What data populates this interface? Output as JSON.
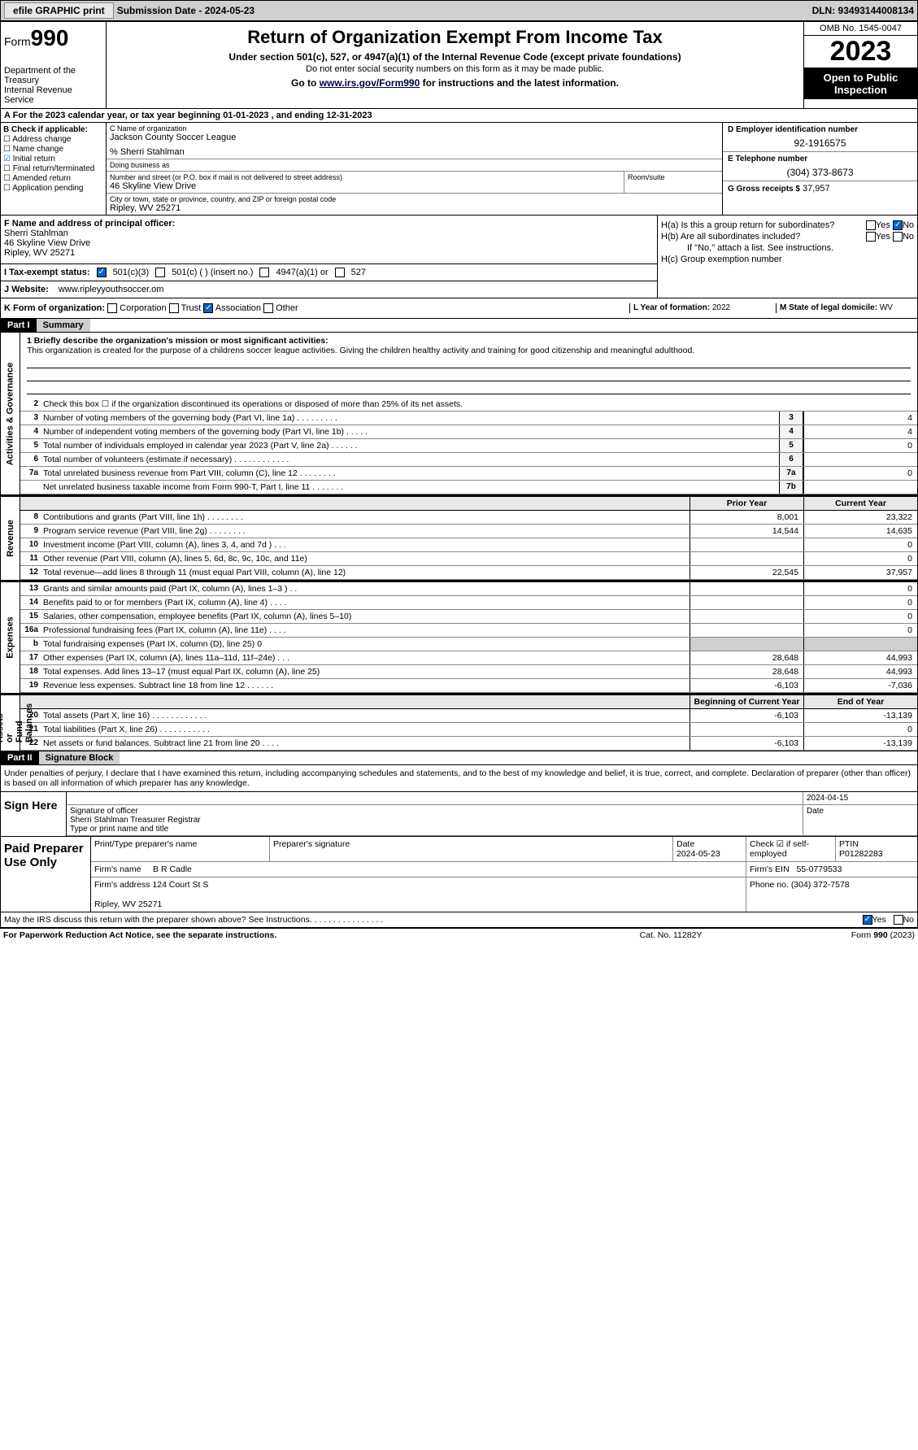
{
  "topbar": {
    "efile": "efile GRAPHIC print",
    "submission": "Submission Date - 2024-05-23",
    "dln": "DLN: 93493144008134"
  },
  "header": {
    "form_prefix": "Form",
    "form_no": "990",
    "dept": "Department of the Treasury\nInternal Revenue Service",
    "title": "Return of Organization Exempt From Income Tax",
    "sub1": "Under section 501(c), 527, or 4947(a)(1) of the Internal Revenue Code (except private foundations)",
    "sub2": "Do not enter social security numbers on this form as it may be made public.",
    "sub3_pre": "Go to ",
    "sub3_link": "www.irs.gov/Form990",
    "sub3_post": " for instructions and the latest information.",
    "omb": "OMB No. 1545-0047",
    "year": "2023",
    "otpi": "Open to Public Inspection"
  },
  "row_a": "A  For the 2023 calendar year, or tax year beginning 01-01-2023    , and ending 12-31-2023",
  "box_b": {
    "hdr": "B Check if applicable:",
    "items": [
      {
        "label": "Address change",
        "on": false
      },
      {
        "label": "Name change",
        "on": false
      },
      {
        "label": "Initial return",
        "on": true
      },
      {
        "label": "Final return/terminated",
        "on": false
      },
      {
        "label": "Amended return",
        "on": false
      },
      {
        "label": "Application pending",
        "on": false
      }
    ]
  },
  "box_c": {
    "name_lbl": "C Name of organization",
    "name": "Jackson County Soccer League",
    "care_of": "% Sherri Stahlman",
    "dba_lbl": "Doing business as",
    "dba": "",
    "addr_lbl": "Number and street (or P.O. box if mail is not delivered to street address)",
    "addr": "46 Skyline View Drive",
    "room_lbl": "Room/suite",
    "city_lbl": "City or town, state or province, country, and ZIP or foreign postal code",
    "city": "Ripley, WV  25271"
  },
  "box_d": {
    "ein_lbl": "D Employer identification number",
    "ein": "92-1916575",
    "tel_lbl": "E Telephone number",
    "tel": "(304) 373-8673",
    "gross_lbl": "G Gross receipts $",
    "gross": "37,957"
  },
  "box_f": {
    "lbl": "F  Name and address of principal officer:",
    "name": "Sherri Stahlman",
    "addr1": "46 Skyline View Drive",
    "addr2": "Ripley, WV  25271"
  },
  "box_h": {
    "a_lbl": "H(a)  Is this a group return for subordinates?",
    "a_yes": false,
    "a_no": true,
    "b_lbl": "H(b)  Are all subordinates included?",
    "b_note": "If \"No,\" attach a list. See instructions.",
    "c_lbl": "H(c)  Group exemption number"
  },
  "box_i": {
    "lbl": "I   Tax-exempt status:",
    "c501c3": true,
    "opts": [
      "501(c)(3)",
      "501(c) (  ) (insert no.)",
      "4947(a)(1) or",
      "527"
    ]
  },
  "box_j": {
    "lbl": "J   Website:",
    "val": "www.ripleyyouthsoccer.om"
  },
  "box_k": {
    "lbl": "K Form of organization:",
    "opts": [
      "Corporation",
      "Trust",
      "Association",
      "Other"
    ],
    "sel": "Association"
  },
  "box_l": {
    "lbl": "L Year of formation:",
    "val": "2022"
  },
  "box_m": {
    "lbl": "M State of legal domicile:",
    "val": "WV"
  },
  "part1": {
    "tag": "Part I",
    "title": "Summary"
  },
  "mission": {
    "q": "1   Briefly describe the organization's mission or most significant activities:",
    "text": "This organization is created for the purpose of a childrens soccer league activities. Giving the children healthy activity and training for good citizenship and meaningful adulthood."
  },
  "line2": "Check this box  ☐  if the organization discontinued its operations or disposed of more than 25% of its net assets.",
  "gov_lines": [
    {
      "n": "3",
      "t": "Number of voting members of the governing body (Part VI, line 1a)   .    .    .    .    .    .    .    .    .",
      "box": "3",
      "v": "4"
    },
    {
      "n": "4",
      "t": "Number of independent voting members of the governing body (Part VI, line 1b)   .    .    .    .    .",
      "box": "4",
      "v": "4"
    },
    {
      "n": "5",
      "t": "Total number of individuals employed in calendar year 2023 (Part V, line 2a)   .    .    .    .    .    .",
      "box": "5",
      "v": "0"
    },
    {
      "n": "6",
      "t": "Total number of volunteers (estimate if necessary)    .    .    .    .    .    .    .    .    .    .    .    .",
      "box": "6",
      "v": ""
    },
    {
      "n": "7a",
      "t": "Total unrelated business revenue from Part VIII, column (C), line 12   .    .    .    .    .    .    .    .",
      "box": "7a",
      "v": "0"
    },
    {
      "n": "",
      "t": "Net unrelated business taxable income from Form 990-T, Part I, line 11   .    .    .    .    .    .    .",
      "box": "7b",
      "v": ""
    }
  ],
  "col_hdrs": {
    "prior": "Prior Year",
    "current": "Current Year"
  },
  "revenue": [
    {
      "n": "8",
      "t": "Contributions and grants (Part VIII, line 1h)    .    .    .    .    .    .    .    .",
      "p": "8,001",
      "c": "23,322"
    },
    {
      "n": "9",
      "t": "Program service revenue (Part VIII, line 2g)    .    .    .    .    .    .    .    .",
      "p": "14,544",
      "c": "14,635"
    },
    {
      "n": "10",
      "t": "Investment income (Part VIII, column (A), lines 3, 4, and 7d )   .    .    .",
      "p": "",
      "c": "0"
    },
    {
      "n": "11",
      "t": "Other revenue (Part VIII, column (A), lines 5, 6d, 8c, 9c, 10c, and 11e)",
      "p": "",
      "c": "0"
    },
    {
      "n": "12",
      "t": "Total revenue—add lines 8 through 11 (must equal Part VIII, column (A), line 12)",
      "p": "22,545",
      "c": "37,957"
    }
  ],
  "expenses": [
    {
      "n": "13",
      "t": "Grants and similar amounts paid (Part IX, column (A), lines 1–3 )   .    .",
      "p": "",
      "c": "0"
    },
    {
      "n": "14",
      "t": "Benefits paid to or for members (Part IX, column (A), line 4)   .    .    .    .",
      "p": "",
      "c": "0"
    },
    {
      "n": "15",
      "t": "Salaries, other compensation, employee benefits (Part IX, column (A), lines 5–10)",
      "p": "",
      "c": "0"
    },
    {
      "n": "16a",
      "t": "Professional fundraising fees (Part IX, column (A), line 11e)   .    .    .    .",
      "p": "",
      "c": "0"
    },
    {
      "n": "b",
      "t": "Total fundraising expenses (Part IX, column (D), line 25) 0",
      "p": "SHADE",
      "c": "SHADE"
    },
    {
      "n": "17",
      "t": "Other expenses (Part IX, column (A), lines 11a–11d, 11f–24e)   .    .    .",
      "p": "28,648",
      "c": "44,993"
    },
    {
      "n": "18",
      "t": "Total expenses. Add lines 13–17 (must equal Part IX, column (A), line 25)",
      "p": "28,648",
      "c": "44,993"
    },
    {
      "n": "19",
      "t": "Revenue less expenses. Subtract line 18 from line 12   .    .    .    .    .    .",
      "p": "-6,103",
      "c": "-7,036"
    }
  ],
  "na_hdrs": {
    "beg": "Beginning of Current Year",
    "end": "End of Year"
  },
  "netassets": [
    {
      "n": "20",
      "t": "Total assets (Part X, line 16)   .    .    .    .    .    .    .    .    .    .    .    .",
      "p": "-6,103",
      "c": "-13,139"
    },
    {
      "n": "21",
      "t": "Total liabilities (Part X, line 26)   .    .    .    .    .    .    .    .    .    .    .",
      "p": "",
      "c": "0"
    },
    {
      "n": "22",
      "t": "Net assets or fund balances. Subtract line 21 from line 20   .    .    .    .",
      "p": "-6,103",
      "c": "-13,139"
    }
  ],
  "vtabs": {
    "gov": "Activities & Governance",
    "rev": "Revenue",
    "exp": "Expenses",
    "na": "Net Assets or\nFund Balances"
  },
  "part2": {
    "tag": "Part II",
    "title": "Signature Block"
  },
  "sig_intro": "Under penalties of perjury, I declare that I have examined this return, including accompanying schedules and statements, and to the best of my knowledge and belief, it is true, correct, and complete. Declaration of preparer (other than officer) is based on all information of which preparer has any knowledge.",
  "sign": {
    "lbl": "Sign Here",
    "sig_lbl": "Signature of officer",
    "date": "2024-04-15",
    "name": "Sherri Stahlman  Treasurer Registrar",
    "name_lbl": "Type or print name and title"
  },
  "paid": {
    "lbl": "Paid Preparer Use Only",
    "h1": "Print/Type preparer's name",
    "h2": "Preparer's signature",
    "h3": "Date",
    "h3v": "2024-05-23",
    "h4": "Check ☑ if self-employed",
    "h5": "PTIN",
    "h5v": "P01282283",
    "firm_lbl": "Firm's name",
    "firm": "B R Cadle",
    "ein_lbl": "Firm's EIN",
    "ein": "55-0779533",
    "addr_lbl": "Firm's address",
    "addr": "124 Court St S",
    "city": "Ripley, WV  25271",
    "phone_lbl": "Phone no.",
    "phone": "(304) 372-7578"
  },
  "irs_q": "May the IRS discuss this return with the preparer shown above? See Instructions.   .    .    .    .    .    .    .    .    .    .    .    .    .    .    .",
  "irs_yes": true,
  "footer": {
    "l": "For Paperwork Reduction Act Notice, see the separate instructions.",
    "c": "Cat. No. 11282Y",
    "r": "Form 990 (2023)"
  },
  "colors": {
    "topbar_bg": "#cfcfcf",
    "black": "#000000",
    "check_blue": "#0066cc",
    "shade": "#cfcfcf"
  }
}
